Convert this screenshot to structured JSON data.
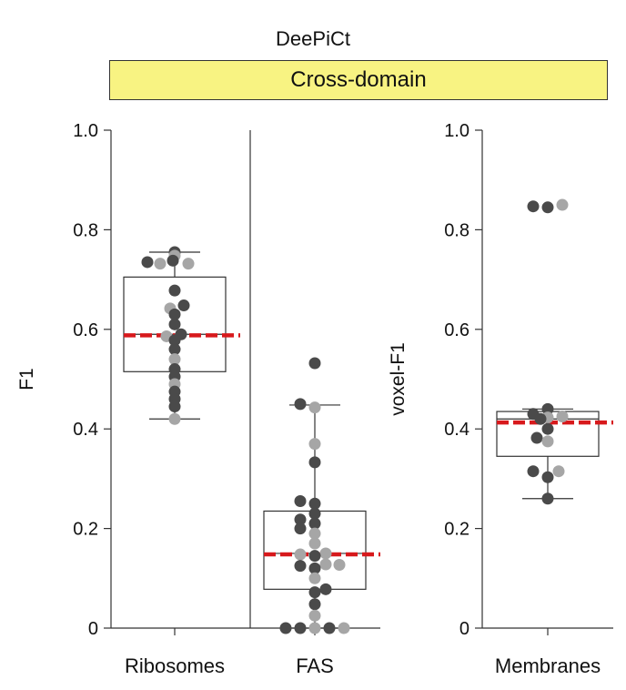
{
  "header": {
    "title": "DeePiCt",
    "banner": "Cross-domain",
    "banner_color": "#f8f382"
  },
  "colors": {
    "dark_point": "#4a4a4a",
    "light_point": "#a6a6a6",
    "mean_line": "#d7191c",
    "box_edge": "#333333"
  },
  "chart_data": [
    {
      "type": "box",
      "panels": [
        "Ribosomes",
        "FAS"
      ],
      "ylabel": "F1",
      "ylim": [
        0,
        1.0
      ],
      "yticks": [
        0,
        0.2,
        0.4,
        0.6,
        0.8,
        1.0
      ],
      "ytick_labels": [
        "0",
        "0.2",
        "0.4",
        "0.6",
        "0.8",
        "1.0"
      ],
      "grid": false,
      "series": [
        {
          "category": "Ribosomes",
          "box": {
            "q1": 0.515,
            "median": 0.59,
            "q3": 0.705,
            "whisker_low": 0.42,
            "whisker_high": 0.755
          },
          "mean_line": 0.588,
          "points": [
            {
              "y": 0.755,
              "shade": "dark",
              "dx": 0
            },
            {
              "y": 0.748,
              "shade": "light",
              "dx": 0
            },
            {
              "y": 0.738,
              "shade": "dark",
              "dx": -2
            },
            {
              "y": 0.735,
              "shade": "dark",
              "dx": -30
            },
            {
              "y": 0.732,
              "shade": "light",
              "dx": -16
            },
            {
              "y": 0.732,
              "shade": "light",
              "dx": 15
            },
            {
              "y": 0.678,
              "shade": "dark",
              "dx": 0
            },
            {
              "y": 0.648,
              "shade": "dark",
              "dx": 10
            },
            {
              "y": 0.642,
              "shade": "light",
              "dx": -5
            },
            {
              "y": 0.63,
              "shade": "dark",
              "dx": 0
            },
            {
              "y": 0.61,
              "shade": "dark",
              "dx": 0
            },
            {
              "y": 0.59,
              "shade": "dark",
              "dx": 7
            },
            {
              "y": 0.586,
              "shade": "light",
              "dx": -9
            },
            {
              "y": 0.578,
              "shade": "dark",
              "dx": 0
            },
            {
              "y": 0.56,
              "shade": "dark",
              "dx": 0
            },
            {
              "y": 0.54,
              "shade": "light",
              "dx": 0
            },
            {
              "y": 0.52,
              "shade": "dark",
              "dx": 0
            },
            {
              "y": 0.505,
              "shade": "dark",
              "dx": 0
            },
            {
              "y": 0.49,
              "shade": "light",
              "dx": 0
            },
            {
              "y": 0.475,
              "shade": "dark",
              "dx": 0
            },
            {
              "y": 0.46,
              "shade": "dark",
              "dx": 0
            },
            {
              "y": 0.445,
              "shade": "dark",
              "dx": 0
            },
            {
              "y": 0.42,
              "shade": "light",
              "dx": 0
            }
          ]
        },
        {
          "category": "FAS",
          "box": {
            "q1": 0.078,
            "median": 0.15,
            "q3": 0.235,
            "whisker_low": 0.0,
            "whisker_high": 0.448
          },
          "mean_line": 0.148,
          "points": [
            {
              "y": 0.532,
              "shade": "dark",
              "dx": 0
            },
            {
              "y": 0.45,
              "shade": "dark",
              "dx": -16
            },
            {
              "y": 0.443,
              "shade": "light",
              "dx": 0
            },
            {
              "y": 0.37,
              "shade": "light",
              "dx": 0
            },
            {
              "y": 0.333,
              "shade": "dark",
              "dx": 0
            },
            {
              "y": 0.255,
              "shade": "dark",
              "dx": -16
            },
            {
              "y": 0.25,
              "shade": "dark",
              "dx": 0
            },
            {
              "y": 0.23,
              "shade": "dark",
              "dx": 0
            },
            {
              "y": 0.218,
              "shade": "dark",
              "dx": -16
            },
            {
              "y": 0.21,
              "shade": "dark",
              "dx": 0
            },
            {
              "y": 0.2,
              "shade": "dark",
              "dx": -16
            },
            {
              "y": 0.19,
              "shade": "light",
              "dx": 0
            },
            {
              "y": 0.17,
              "shade": "light",
              "dx": 0
            },
            {
              "y": 0.15,
              "shade": "light",
              "dx": 12
            },
            {
              "y": 0.148,
              "shade": "light",
              "dx": -16
            },
            {
              "y": 0.145,
              "shade": "dark",
              "dx": 0
            },
            {
              "y": 0.128,
              "shade": "light",
              "dx": 12
            },
            {
              "y": 0.125,
              "shade": "dark",
              "dx": -16
            },
            {
              "y": 0.127,
              "shade": "light",
              "dx": 27
            },
            {
              "y": 0.12,
              "shade": "dark",
              "dx": 0
            },
            {
              "y": 0.1,
              "shade": "light",
              "dx": 0
            },
            {
              "y": 0.078,
              "shade": "dark",
              "dx": 12
            },
            {
              "y": 0.072,
              "shade": "dark",
              "dx": 0
            },
            {
              "y": 0.048,
              "shade": "dark",
              "dx": 0
            },
            {
              "y": 0.025,
              "shade": "light",
              "dx": 0
            },
            {
              "y": 0.0,
              "shade": "dark",
              "dx": -32
            },
            {
              "y": 0.0,
              "shade": "dark",
              "dx": -16
            },
            {
              "y": 0.0,
              "shade": "light",
              "dx": 0
            },
            {
              "y": 0.0,
              "shade": "dark",
              "dx": 16
            },
            {
              "y": 0.0,
              "shade": "light",
              "dx": 32
            }
          ]
        }
      ]
    },
    {
      "type": "box",
      "panels": [
        "Membranes"
      ],
      "ylabel": "voxel-F1",
      "ylim": [
        0,
        1.0
      ],
      "yticks": [
        0,
        0.2,
        0.4,
        0.6,
        0.8,
        1.0
      ],
      "ytick_labels": [
        "0",
        "0.2",
        "0.4",
        "0.6",
        "0.8",
        "1.0"
      ],
      "grid": false,
      "series": [
        {
          "category": "Membranes",
          "box": {
            "q1": 0.345,
            "median": 0.42,
            "q3": 0.435,
            "whisker_low": 0.26,
            "whisker_high": 0.44
          },
          "mean_line": 0.413,
          "points": [
            {
              "y": 0.85,
              "shade": "light",
              "dx": 16
            },
            {
              "y": 0.847,
              "shade": "dark",
              "dx": -16
            },
            {
              "y": 0.845,
              "shade": "dark",
              "dx": 0
            },
            {
              "y": 0.44,
              "shade": "dark",
              "dx": 0
            },
            {
              "y": 0.43,
              "shade": "dark",
              "dx": -16
            },
            {
              "y": 0.425,
              "shade": "light",
              "dx": 16
            },
            {
              "y": 0.423,
              "shade": "light",
              "dx": 0
            },
            {
              "y": 0.42,
              "shade": "dark",
              "dx": -8
            },
            {
              "y": 0.4,
              "shade": "dark",
              "dx": 0
            },
            {
              "y": 0.382,
              "shade": "dark",
              "dx": -12
            },
            {
              "y": 0.375,
              "shade": "light",
              "dx": 0
            },
            {
              "y": 0.315,
              "shade": "dark",
              "dx": -16
            },
            {
              "y": 0.315,
              "shade": "light",
              "dx": 12
            },
            {
              "y": 0.303,
              "shade": "dark",
              "dx": 0
            },
            {
              "y": 0.26,
              "shade": "dark",
              "dx": 0
            }
          ]
        }
      ]
    }
  ]
}
